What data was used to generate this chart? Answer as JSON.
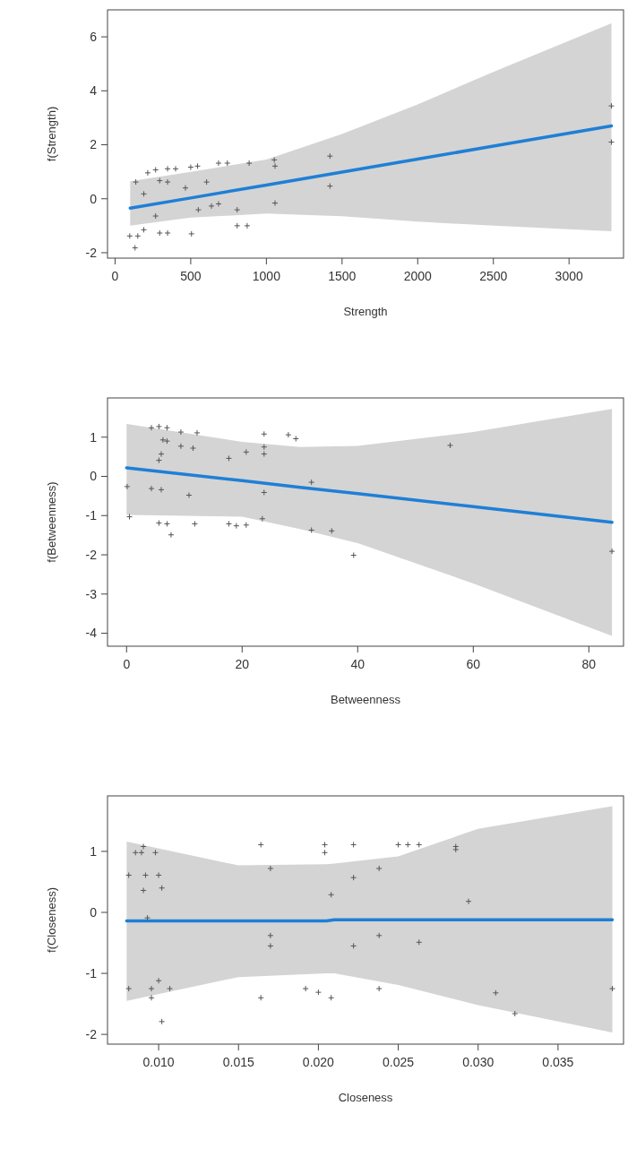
{
  "chart_data": [
    {
      "type": "line",
      "xlabel": "Strength",
      "ylabel": "f(Strength)",
      "xlim": [
        -50,
        3360
      ],
      "ylim": [
        -2.2,
        7.0
      ],
      "xticks": [
        0,
        500,
        1000,
        1500,
        2000,
        2500,
        3000
      ],
      "yticks": [
        -2,
        0,
        2,
        4,
        6
      ],
      "grid": false,
      "series": [
        {
          "color": "#1f7fd6",
          "x": [
            100,
            500,
            1000,
            1500,
            2000,
            2500,
            3280
          ],
          "values": [
            -0.35,
            0.03,
            0.51,
            0.99,
            1.47,
            1.95,
            2.7
          ],
          "lower": [
            -1.0,
            -0.7,
            -0.55,
            -0.65,
            -0.85,
            -1.0,
            -1.2
          ],
          "upper": [
            0.65,
            1.0,
            1.45,
            2.4,
            3.5,
            4.7,
            6.5
          ]
        },
        {
          "type": "scatter",
          "color": "#555555",
          "marker": "cross",
          "x": [
            97,
            150,
            132,
            190,
            190,
            137,
            216,
            268,
            295,
            347,
            347,
            400,
            268,
            295,
            347,
            465,
            500,
            545,
            505,
            550,
            605,
            637,
            684,
            684,
            742,
            807,
            807,
            873,
            886,
            1052,
            1057,
            1057,
            1420,
            1420,
            3280,
            3280
          ],
          "values": [
            -1.38,
            -1.38,
            -1.82,
            -1.15,
            0.18,
            0.62,
            0.96,
            1.07,
            0.67,
            1.11,
            0.62,
            1.11,
            -0.64,
            -1.27,
            -1.27,
            0.4,
            1.17,
            1.21,
            -1.3,
            -0.41,
            0.62,
            -0.27,
            -0.19,
            1.32,
            1.32,
            -0.41,
            -1.0,
            -1.0,
            1.32,
            1.44,
            1.21,
            -0.16,
            1.58,
            0.47,
            3.44,
            2.1
          ]
        }
      ]
    },
    {
      "type": "line",
      "xlabel": "Betweenness",
      "ylabel": "f(Betweenness)",
      "xlim": [
        -3.3,
        86
      ],
      "ylim": [
        -4.33,
        2.0
      ],
      "xticks": [
        0,
        20,
        40,
        60,
        80
      ],
      "yticks": [
        -4,
        -3,
        -2,
        -1,
        0,
        1
      ],
      "grid": false,
      "series": [
        {
          "color": "#1f7fd6",
          "x": [
            0,
            20,
            30,
            40,
            60,
            84
          ],
          "values": [
            0.22,
            -0.11,
            -0.28,
            -0.44,
            -0.77,
            -1.17
          ],
          "lower": [
            -0.98,
            -1.03,
            -1.34,
            -1.7,
            -2.73,
            -4.07
          ],
          "upper": [
            1.34,
            0.88,
            0.75,
            0.78,
            1.13,
            1.72
          ]
        },
        {
          "type": "scatter",
          "color": "#555555",
          "marker": "cross",
          "x": [
            4.3,
            5.6,
            7.0,
            9.4,
            12.2,
            6.3,
            7.0,
            9.4,
            11.5,
            6.0,
            5.6,
            17.7,
            20.7,
            23.8,
            23.8,
            23.8,
            28,
            29.3,
            0.1,
            4.3,
            6,
            10.8,
            23.8,
            32,
            0.5,
            5.6,
            7,
            7.7,
            11.8,
            17.7,
            19,
            20.7,
            23.5,
            32,
            35.5,
            39.3,
            56,
            84
          ],
          "values": [
            1.24,
            1.27,
            1.24,
            1.13,
            1.11,
            0.93,
            0.9,
            0.77,
            0.72,
            0.57,
            0.41,
            0.46,
            0.62,
            0.57,
            1.08,
            0.75,
            1.06,
            0.96,
            -0.26,
            -0.31,
            -0.34,
            -0.48,
            -0.41,
            -0.15,
            -1.03,
            -1.19,
            -1.21,
            -1.49,
            -1.21,
            -1.21,
            -1.26,
            -1.24,
            -1.08,
            -1.37,
            -1.39,
            -2.01,
            0.79,
            -1.91
          ]
        }
      ]
    },
    {
      "type": "line",
      "xlabel": "Closeness",
      "ylabel": "f(Closeness)",
      "xlim": [
        0.0068,
        0.0391
      ],
      "ylim": [
        -2.16,
        1.91
      ],
      "xticks": [
        {
          "value": 0.01,
          "label": "0.010"
        },
        {
          "value": 0.015,
          "label": "0.015"
        },
        {
          "value": 0.02,
          "label": "0.020"
        },
        {
          "value": 0.025,
          "label": "0.025"
        },
        {
          "value": 0.03,
          "label": "0.030"
        },
        {
          "value": 0.035,
          "label": "0.035"
        }
      ],
      "yticks": [
        -2,
        -1,
        0,
        1
      ],
      "grid": false,
      "series": [
        {
          "color": "#1f7fd6",
          "x": [
            0.008,
            0.015,
            0.0205,
            0.021,
            0.025,
            0.03,
            0.0384
          ],
          "values": [
            -0.14,
            -0.14,
            -0.14,
            -0.12,
            -0.12,
            -0.12,
            -0.12
          ],
          "lower": [
            -1.45,
            -1.06,
            -1.0,
            -1.0,
            -1.19,
            -1.52,
            -1.97
          ],
          "upper": [
            1.16,
            0.77,
            0.79,
            0.8,
            0.92,
            1.37,
            1.74
          ]
        },
        {
          "type": "scatter",
          "color": "#555555",
          "marker": "cross",
          "x": [
            0.00813,
            0.00855,
            0.00893,
            0.00905,
            0.0098,
            0.00918,
            0.01,
            0.00905,
            0.0102,
            0.0093,
            0.00813,
            0.00955,
            0.00955,
            0.01,
            0.0107,
            0.0102,
            0.0164,
            0.017,
            0.017,
            0.017,
            0.0164,
            0.0192,
            0.02,
            0.0204,
            0.0204,
            0.0208,
            0.0208,
            0.0222,
            0.0222,
            0.0222,
            0.0238,
            0.0238,
            0.0238,
            0.025,
            0.0256,
            0.0263,
            0.0263,
            0.0286,
            0.0286,
            0.0294,
            0.0311,
            0.0323,
            0.0384
          ],
          "values": [
            0.61,
            0.98,
            0.98,
            1.08,
            0.98,
            0.61,
            0.61,
            0.36,
            0.4,
            -0.09,
            -1.25,
            -1.25,
            -1.4,
            -1.12,
            -1.25,
            -1.79,
            1.11,
            0.72,
            -0.38,
            -0.55,
            -1.4,
            -1.25,
            -1.31,
            1.11,
            0.98,
            0.29,
            -1.4,
            1.11,
            0.57,
            -0.55,
            0.72,
            -0.38,
            -1.25,
            1.11,
            1.11,
            1.11,
            -0.49,
            1.08,
            1.03,
            0.18,
            -1.32,
            -1.66,
            -1.25
          ]
        }
      ]
    }
  ]
}
